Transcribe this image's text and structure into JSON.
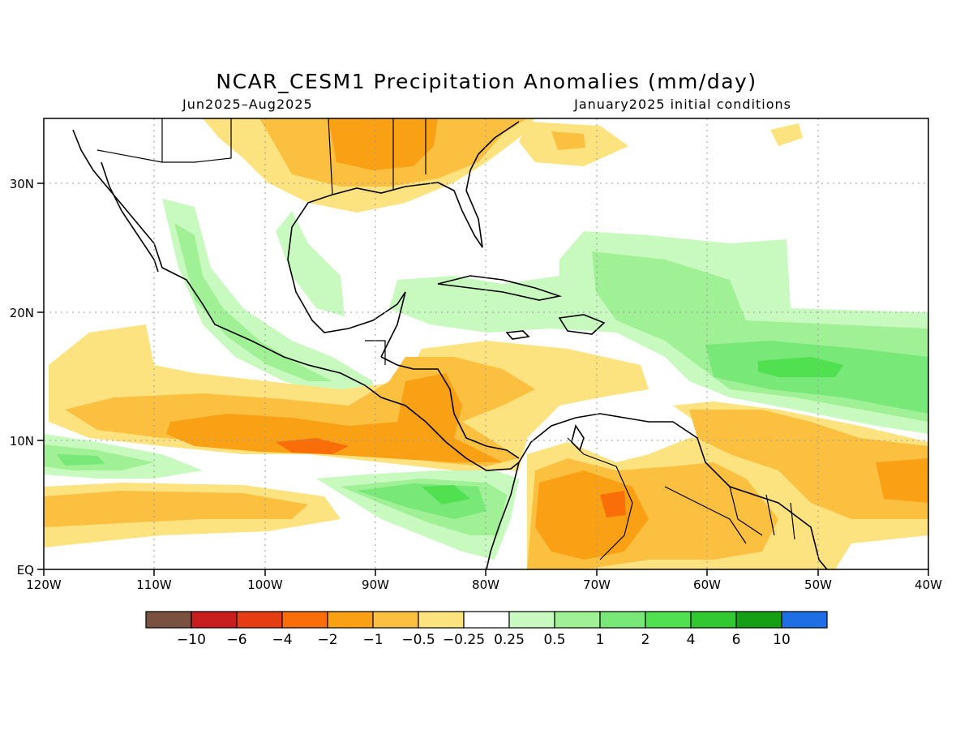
{
  "title": "NCAR_CESM1 Precipitation Anomalies (mm/day)",
  "subtitle_left": "Jun2025–Aug2025",
  "subtitle_right": "January2025 initial conditions",
  "map": {
    "lon_range": [
      -120,
      -40
    ],
    "lat_range": [
      0,
      35
    ],
    "gridlines": "dotted",
    "x_ticks": [
      "120W",
      "110W",
      "100W",
      "90W",
      "80W",
      "70W",
      "60W",
      "50W",
      "40W"
    ],
    "y_ticks": [
      "EQ",
      "10N",
      "20N",
      "30N"
    ]
  },
  "colorbar": {
    "colors": [
      "#7a5040",
      "#c81e1e",
      "#e63c14",
      "#fa6e0a",
      "#faa014",
      "#fcc040",
      "#fde280",
      "#ffffff",
      "#c8fac0",
      "#a0f096",
      "#78e878",
      "#50e050",
      "#32c832",
      "#14a014",
      "#1e6ee6"
    ],
    "labels": [
      "−10",
      "−6",
      "−4",
      "−2",
      "−1",
      "−0.5",
      "−0.25",
      "0.25",
      "0.5",
      "1",
      "2",
      "4",
      "6",
      "10"
    ]
  }
}
